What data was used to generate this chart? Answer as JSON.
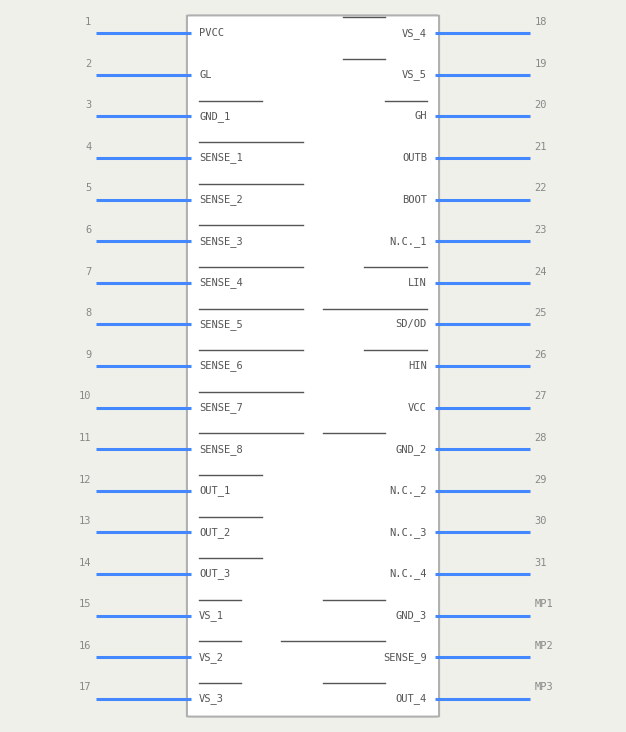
{
  "bg_color": "#f0f0eb",
  "box_facecolor": "#ffffff",
  "box_edgecolor": "#b0b0b0",
  "pin_line_color": "#4488ff",
  "text_color": "#555555",
  "num_color": "#888888",
  "figwidth": 6.26,
  "figheight": 7.32,
  "dpi": 100,
  "left_pins": [
    {
      "num": "1",
      "name": "PVCC",
      "overline": false
    },
    {
      "num": "2",
      "name": "GL",
      "overline": false
    },
    {
      "num": "3",
      "name": "GND_1",
      "overline": true,
      "ol_part": "GND",
      "sub": "1"
    },
    {
      "num": "4",
      "name": "SENSE_1",
      "overline": true,
      "ol_part": "SENSE",
      "sub": "1"
    },
    {
      "num": "5",
      "name": "SENSE_2",
      "overline": true,
      "ol_part": "SENSE",
      "sub": "2"
    },
    {
      "num": "6",
      "name": "SENSE_3",
      "overline": true,
      "ol_part": "SENSE",
      "sub": "3"
    },
    {
      "num": "7",
      "name": "SENSE_4",
      "overline": true,
      "ol_part": "SENSE",
      "sub": "4"
    },
    {
      "num": "8",
      "name": "SENSE_5",
      "overline": true,
      "ol_part": "SENSE",
      "sub": "5"
    },
    {
      "num": "9",
      "name": "SENSE_6",
      "overline": true,
      "ol_part": "SENSE",
      "sub": "6"
    },
    {
      "num": "10",
      "name": "SENSE_7",
      "overline": true,
      "ol_part": "SENSE",
      "sub": "7"
    },
    {
      "num": "11",
      "name": "SENSE_8",
      "overline": true,
      "ol_part": "SENSE",
      "sub": "8"
    },
    {
      "num": "12",
      "name": "OUT_1",
      "overline": true,
      "ol_part": "OUT",
      "sub": "1"
    },
    {
      "num": "13",
      "name": "OUT_2",
      "overline": true,
      "ol_part": "OUT",
      "sub": "2"
    },
    {
      "num": "14",
      "name": "OUT_3",
      "overline": true,
      "ol_part": "OUT",
      "sub": "3"
    },
    {
      "num": "15",
      "name": "VS_1",
      "overline": true,
      "ol_part": "VS",
      "sub": "1"
    },
    {
      "num": "16",
      "name": "VS_2",
      "overline": true,
      "ol_part": "VS",
      "sub": "2"
    },
    {
      "num": "17",
      "name": "VS_3",
      "overline": true,
      "ol_part": "VS",
      "sub": "3"
    }
  ],
  "right_pins": [
    {
      "num": "18",
      "name": "VS_4",
      "overline": true,
      "ol_part": "VS",
      "sub": "4"
    },
    {
      "num": "19",
      "name": "VS_5",
      "overline": true,
      "ol_part": "VS",
      "sub": "5"
    },
    {
      "num": "20",
      "name": "GH",
      "overline": true,
      "ol_part": "GH",
      "sub": ""
    },
    {
      "num": "21",
      "name": "OUTB",
      "overline": false
    },
    {
      "num": "22",
      "name": "BOOT",
      "overline": false
    },
    {
      "num": "23",
      "name": "N.C._1",
      "overline": false,
      "ol_part": "N.C.",
      "sub": "1"
    },
    {
      "num": "24",
      "name": "LIN",
      "overline": true,
      "ol_part": "LIN",
      "sub": ""
    },
    {
      "num": "25",
      "name": "SD/OD",
      "overline": true,
      "ol_part": "SD/OD",
      "sub": ""
    },
    {
      "num": "26",
      "name": "HIN",
      "overline": true,
      "ol_part": "HIN",
      "sub": ""
    },
    {
      "num": "27",
      "name": "VCC",
      "overline": false
    },
    {
      "num": "28",
      "name": "GND_2",
      "overline": true,
      "ol_part": "GND",
      "sub": "2"
    },
    {
      "num": "29",
      "name": "N.C._2",
      "overline": false,
      "ol_part": "N.C.",
      "sub": "2"
    },
    {
      "num": "30",
      "name": "N.C._3",
      "overline": false,
      "ol_part": "N.C.",
      "sub": "3"
    },
    {
      "num": "31",
      "name": "N.C._4",
      "overline": false,
      "ol_part": "N.C.",
      "sub": "4"
    },
    {
      "num": "MP1",
      "name": "GND_3",
      "overline": true,
      "ol_part": "GND",
      "sub": "3"
    },
    {
      "num": "MP2",
      "name": "SENSE_9",
      "overline": true,
      "ol_part": "SENSE",
      "sub": "9"
    },
    {
      "num": "MP3",
      "name": "OUT_4",
      "overline": true,
      "ol_part": "OUT",
      "sub": "4"
    }
  ]
}
